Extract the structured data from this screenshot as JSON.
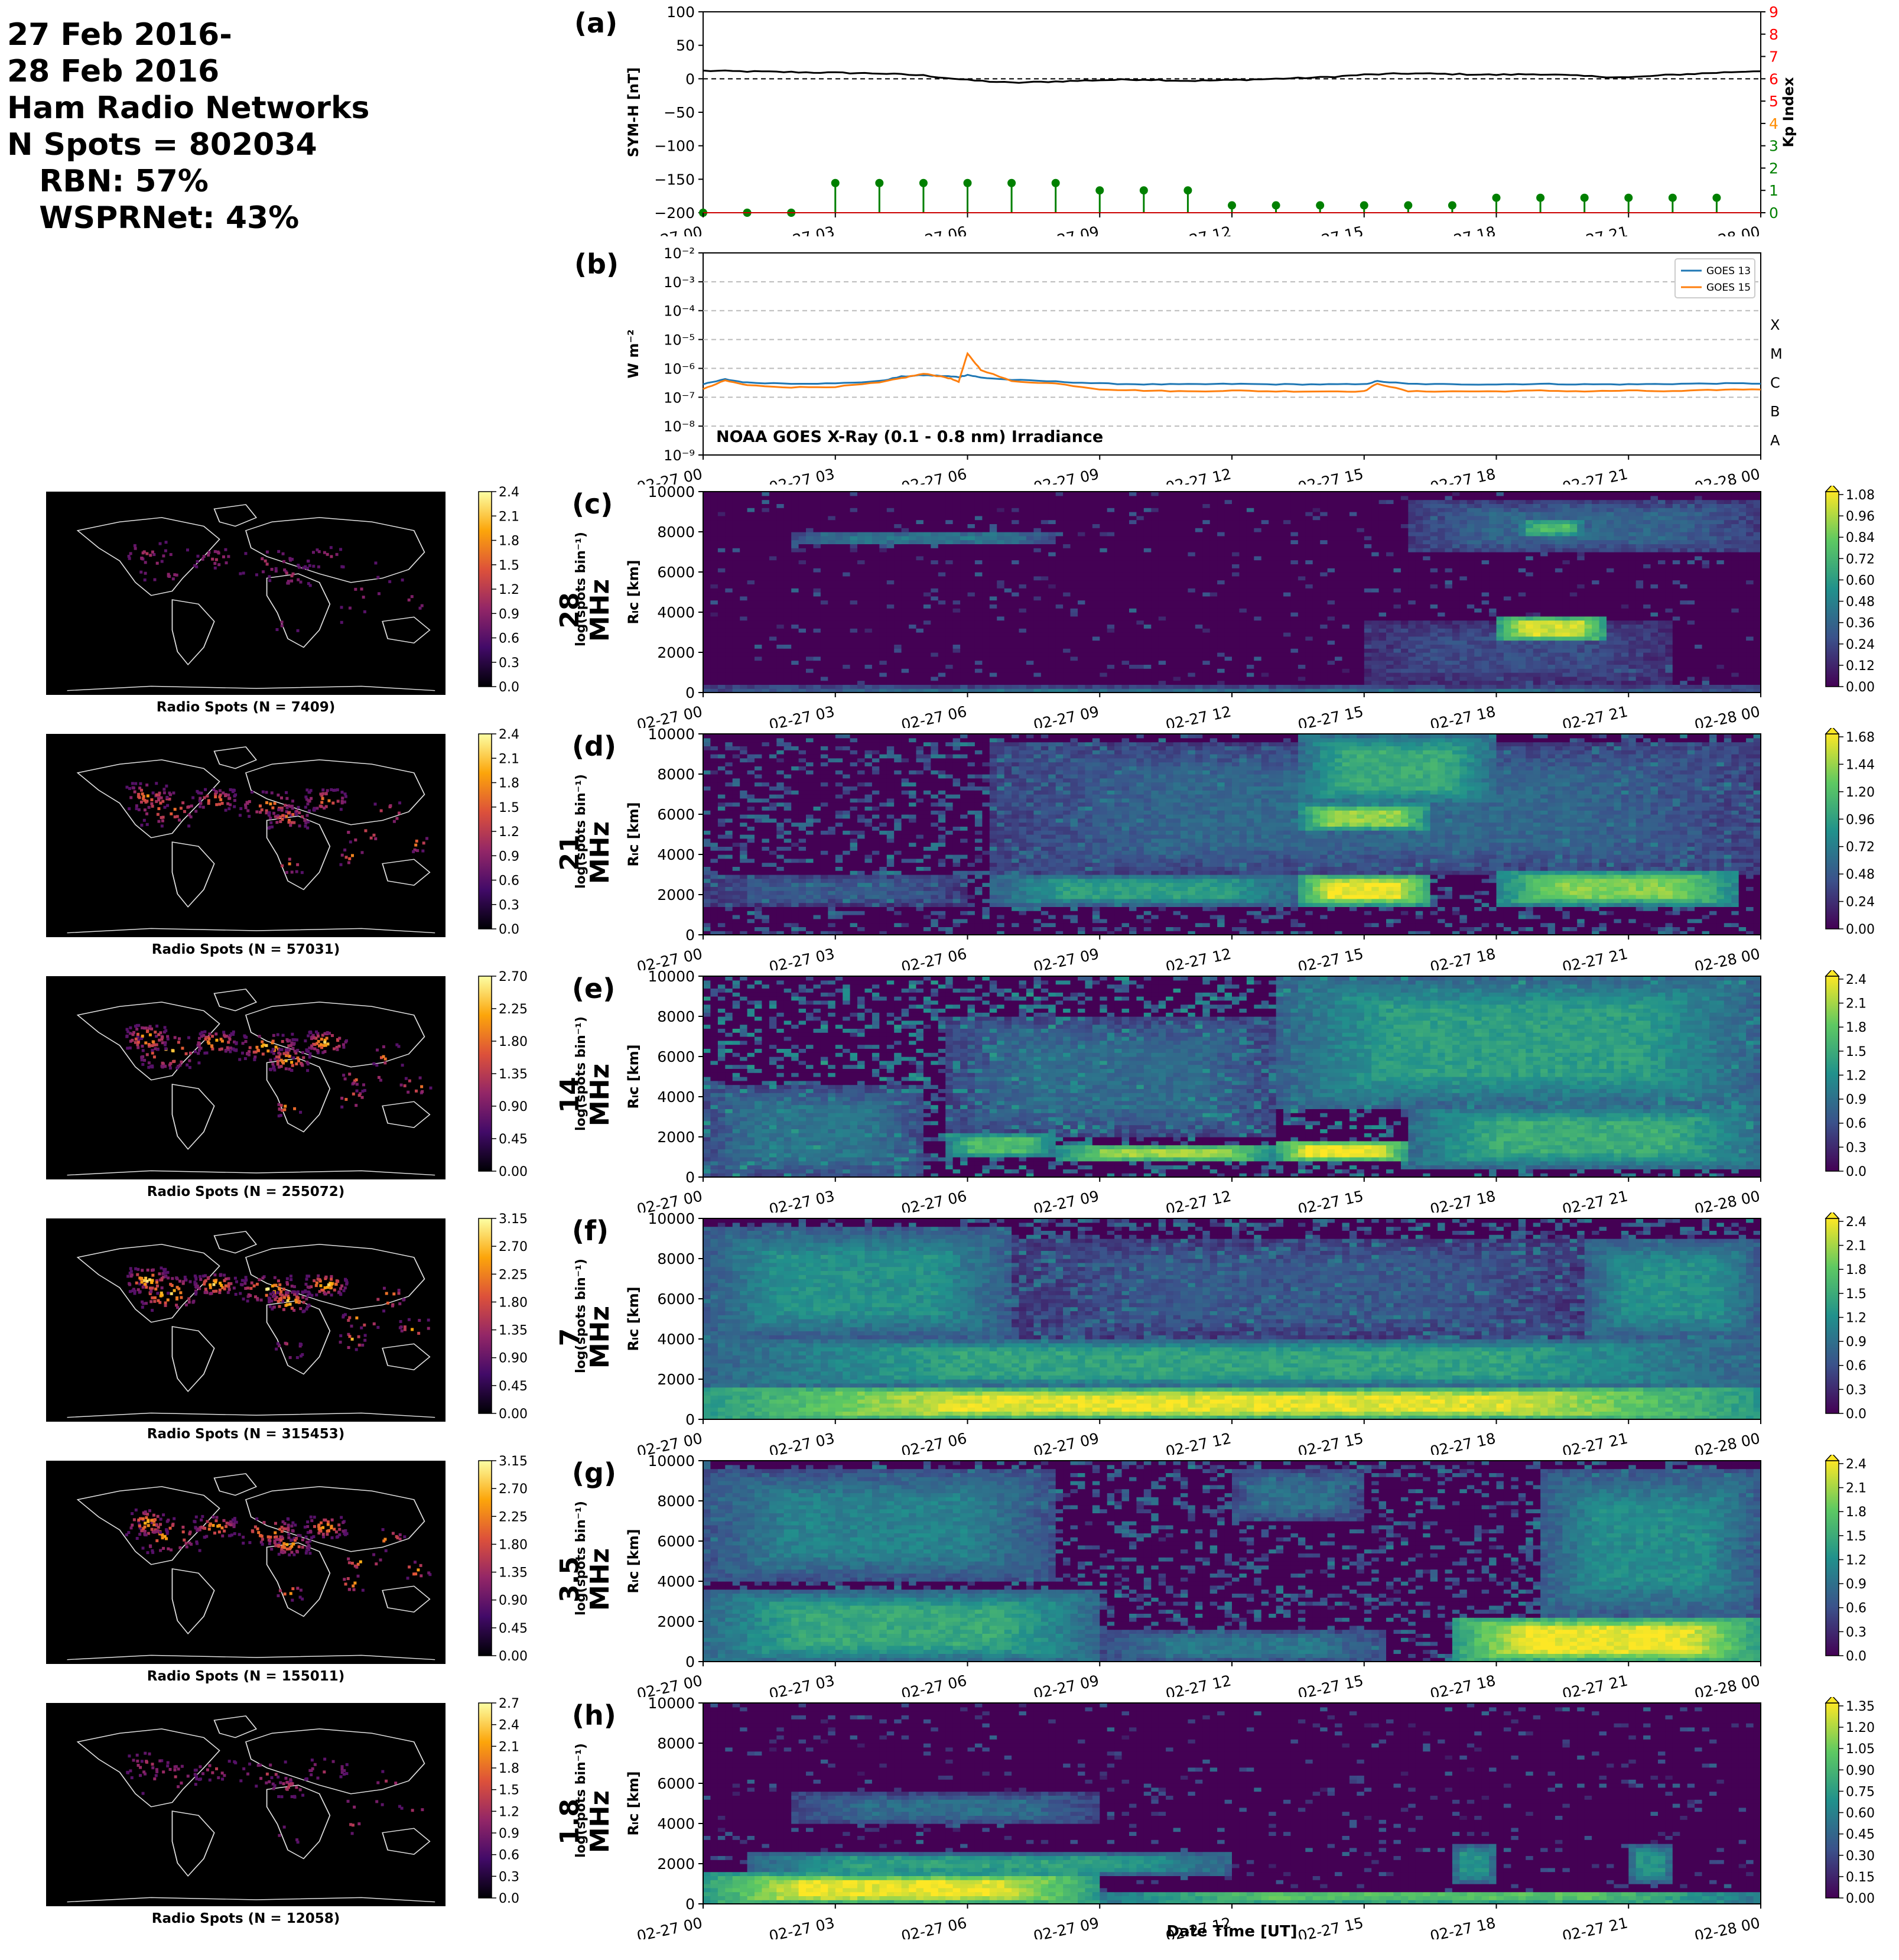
{
  "header": {
    "lines": [
      "27 Feb 2016-",
      "28 Feb 2016",
      "Ham Radio Networks",
      "N Spots = 802034",
      "   RBN: 57%",
      "   WSPRNet: 43%"
    ]
  },
  "time_axis": {
    "ticks": [
      "02-27 00",
      "02-27 03",
      "02-27 06",
      "02-27 09",
      "02-27 12",
      "02-27 15",
      "02-27 18",
      "02-27 21",
      "02-28 00"
    ],
    "xlabel": "Date Time [UT]"
  },
  "colors": {
    "symh_line": "#000000",
    "kp_stem": "#008000",
    "kp_axis_red": "#ff0000",
    "kp_axis_orange": "#ff8c00",
    "kp_axis_green": "#008000",
    "goes13": "#1f77b4",
    "goes15": "#ff7f0e",
    "viridis": [
      "#440154",
      "#3b528b",
      "#21918c",
      "#5ec962",
      "#fde725"
    ],
    "inferno": [
      "#000004",
      "#420a68",
      "#932667",
      "#dd513a",
      "#fca50a",
      "#fcffa4"
    ]
  },
  "chart_data": [
    {
      "panel": "(a)",
      "type": "line",
      "ylabel": "SYM-H [nT]",
      "ylabel_right": "Kp Index",
      "ylim": [
        -200,
        100
      ],
      "yticks": [
        "100",
        "50",
        "0",
        "−50",
        "−100",
        "−150",
        "−200"
      ],
      "ylim_right": [
        0,
        9
      ],
      "yticks_right": [
        "9",
        "8",
        "7",
        "6",
        "5",
        "4",
        "3",
        "2",
        "1",
        "0"
      ],
      "x_hours": [
        0,
        1,
        2,
        3,
        4,
        5,
        6,
        7,
        8,
        9,
        10,
        11,
        12,
        13,
        14,
        15,
        16,
        17,
        18,
        19,
        20,
        21,
        22,
        23,
        24
      ],
      "series": [
        {
          "values": [
            12,
            11,
            10,
            9,
            8,
            5,
            -2,
            -6,
            -4,
            -2,
            -1,
            -3,
            -2,
            0,
            2,
            6,
            8,
            7,
            6,
            7,
            4,
            2,
            6,
            9,
            12
          ]
        }
      ],
      "kp": {
        "x_hours": [
          0,
          1,
          2,
          3,
          4,
          5,
          6,
          7,
          8,
          9,
          10,
          11,
          12,
          13,
          14,
          15,
          16,
          17,
          18,
          19,
          20,
          21,
          22,
          23
        ],
        "values": [
          0,
          0,
          0,
          1.33,
          1.33,
          1.33,
          1.33,
          1.33,
          1.33,
          1.0,
          1.0,
          1.0,
          0.33,
          0.33,
          0.33,
          0.33,
          0.33,
          0.33,
          0.67,
          0.67,
          0.67,
          0.67,
          0.67,
          0.67
        ]
      }
    },
    {
      "panel": "(b)",
      "type": "line",
      "ylabel": "W m⁻²",
      "yscale": "log",
      "ylim": [
        1e-09,
        0.01
      ],
      "yticks": [
        "10⁻²",
        "10⁻³",
        "10⁻⁴",
        "10⁻⁵",
        "10⁻⁶",
        "10⁻⁷",
        "10⁻⁸",
        "10⁻⁹"
      ],
      "flare_classes": [
        "X",
        "M",
        "C",
        "B",
        "A"
      ],
      "annotation": "NOAA GOES X-Ray (0.1 - 0.8 nm) Irradiance",
      "legend_location": "top-right",
      "x_hours": [
        0,
        0.5,
        1,
        2,
        3,
        4,
        4.5,
        5,
        5.5,
        5.8,
        6,
        6.3,
        7,
        8,
        9,
        10,
        11,
        12,
        13,
        14,
        15,
        15.3,
        16,
        17,
        18,
        19,
        20,
        21,
        22,
        23,
        24
      ],
      "series": [
        {
          "name": "GOES 13",
          "values": [
            2.8e-07,
            4.2e-07,
            3.2e-07,
            3e-07,
            3e-07,
            3.6e-07,
            5.2e-07,
            5.8e-07,
            5.4e-07,
            5e-07,
            6e-07,
            4.8e-07,
            4e-07,
            3.5e-07,
            3e-07,
            2.8e-07,
            2.8e-07,
            2.9e-07,
            2.8e-07,
            2.8e-07,
            2.8e-07,
            3.6e-07,
            2.9e-07,
            2.8e-07,
            2.8e-07,
            2.9e-07,
            2.8e-07,
            2.8e-07,
            2.9e-07,
            3e-07,
            3e-07
          ]
        },
        {
          "name": "GOES 15",
          "values": [
            1.9e-07,
            3.8e-07,
            2.6e-07,
            2.2e-07,
            2.3e-07,
            3.2e-07,
            4.6e-07,
            6.5e-07,
            5e-07,
            3.5e-07,
            3.2e-06,
            9e-07,
            3.6e-07,
            3e-07,
            1.9e-07,
            1.7e-07,
            1.6e-07,
            1.7e-07,
            1.6e-07,
            1.6e-07,
            1.6e-07,
            3e-07,
            1.6e-07,
            1.6e-07,
            1.6e-07,
            1.7e-07,
            1.6e-07,
            1.7e-07,
            1.6e-07,
            1.8e-07,
            1.9e-07
          ]
        }
      ]
    },
    {
      "panel": "(c)",
      "type": "heatmap",
      "band": "28 MHz",
      "ylabel": "Rₗc [km]",
      "ylim": [
        0,
        10000
      ],
      "yticks": [
        "10000",
        "8000",
        "6000",
        "4000",
        "2000",
        "0"
      ],
      "colorbar_label": "log(spots bin⁻¹)",
      "cmax": 1.08,
      "colorbar_ticks": [
        "1.08",
        "0.96",
        "0.84",
        "0.72",
        "0.60",
        "0.48",
        "0.36",
        "0.24",
        "0.12",
        "0.00"
      ],
      "map_title": "Radio Spots (N = 7409)",
      "map_colorbar_ticks": [
        "2.4",
        "2.1",
        "1.8",
        "1.5",
        "1.2",
        "0.9",
        "0.6",
        "0.3",
        "0.0"
      ],
      "blobs": [
        {
          "t0": 18,
          "t1": 20.5,
          "r0": 2600,
          "r1": 3800,
          "v": 1.0
        },
        {
          "t0": 18.5,
          "t1": 20,
          "r0": 7800,
          "r1": 8600,
          "v": 0.75
        },
        {
          "t0": 16,
          "t1": 24,
          "r0": 7000,
          "r1": 9500,
          "v": 0.35
        },
        {
          "t0": 2,
          "t1": 8,
          "r0": 7400,
          "r1": 8000,
          "v": 0.45
        },
        {
          "t0": 0,
          "t1": 24,
          "r0": 0,
          "r1": 300,
          "v": 0.4
        },
        {
          "t0": 15,
          "t1": 22,
          "r0": 500,
          "r1": 3500,
          "v": 0.25
        }
      ],
      "noise": 0.3,
      "noise_density": 0.05
    },
    {
      "panel": "(d)",
      "type": "heatmap",
      "band": "21 MHz",
      "ylabel": "Rₗc [km]",
      "ylim": [
        0,
        10000
      ],
      "yticks": [
        "10000",
        "8000",
        "6000",
        "4000",
        "2000",
        "0"
      ],
      "colorbar_label": "log(spots bin⁻¹)",
      "cmax": 1.8,
      "colorbar_ticks": [
        "1.68",
        "1.44",
        "1.20",
        "0.96",
        "0.72",
        "0.48",
        "0.24",
        "0.00"
      ],
      "map_title": "Radio Spots (N = 57031)",
      "map_colorbar_ticks": [
        "2.4",
        "2.1",
        "1.8",
        "1.5",
        "1.2",
        "0.9",
        "0.6",
        "0.3",
        "0.0"
      ],
      "blobs": [
        {
          "t0": 13.5,
          "t1": 16.5,
          "r0": 1500,
          "r1": 3000,
          "v": 1.75
        },
        {
          "t0": 13.5,
          "t1": 16.5,
          "r0": 5200,
          "r1": 6500,
          "v": 1.5
        },
        {
          "t0": 18,
          "t1": 23.5,
          "r0": 1500,
          "r1": 3200,
          "v": 1.45
        },
        {
          "t0": 6.5,
          "t1": 13.5,
          "r0": 1500,
          "r1": 3000,
          "v": 1.0
        },
        {
          "t0": 6.5,
          "t1": 24,
          "r0": 3000,
          "r1": 9500,
          "v": 0.6
        },
        {
          "t0": 13.5,
          "t1": 18,
          "r0": 6500,
          "r1": 10000,
          "v": 1.1
        },
        {
          "t0": 0,
          "t1": 6,
          "r0": 1500,
          "r1": 3000,
          "v": 0.5
        }
      ],
      "noise": 0.4,
      "noise_density": 0.25
    },
    {
      "panel": "(e)",
      "type": "heatmap",
      "band": "14 MHz",
      "ylabel": "Rₗc [km]",
      "ylim": [
        0,
        10000
      ],
      "yticks": [
        "10000",
        "8000",
        "6000",
        "4000",
        "2000",
        "0"
      ],
      "colorbar_label": "log(spots bin⁻¹)",
      "cmax": 2.6,
      "colorbar_ticks": [
        "2.4",
        "2.1",
        "1.8",
        "1.5",
        "1.2",
        "0.9",
        "0.6",
        "0.3",
        "0.0"
      ],
      "map_title": "Radio Spots (N = 255072)",
      "map_colorbar_ticks": [
        "2.70",
        "2.25",
        "1.80",
        "1.35",
        "0.90",
        "0.45",
        "0.00"
      ],
      "blobs": [
        {
          "t0": 13,
          "t1": 16,
          "r0": 800,
          "r1": 1800,
          "v": 2.55
        },
        {
          "t0": 8,
          "t1": 13,
          "r0": 800,
          "r1": 1600,
          "v": 2.2
        },
        {
          "t0": 5.5,
          "t1": 8,
          "r0": 1000,
          "r1": 2200,
          "v": 1.8
        },
        {
          "t0": 16,
          "t1": 24,
          "r0": 500,
          "r1": 3500,
          "v": 1.6
        },
        {
          "t0": 13,
          "t1": 24,
          "r0": 3500,
          "r1": 10000,
          "v": 1.45
        },
        {
          "t0": 0,
          "t1": 5,
          "r0": 0,
          "r1": 4500,
          "v": 1.0
        },
        {
          "t0": 5.5,
          "t1": 13,
          "r0": 2000,
          "r1": 8000,
          "v": 0.9
        }
      ],
      "noise": 0.5,
      "noise_density": 0.3
    },
    {
      "panel": "(f)",
      "type": "heatmap",
      "band": "7 MHz",
      "ylabel": "Rₗc [km]",
      "ylim": [
        0,
        10000
      ],
      "yticks": [
        "10000",
        "8000",
        "6000",
        "4000",
        "2000",
        "0"
      ],
      "colorbar_label": "log(spots bin⁻¹)",
      "cmax": 2.6,
      "colorbar_ticks": [
        "2.4",
        "2.1",
        "1.8",
        "1.5",
        "1.2",
        "0.9",
        "0.6",
        "0.3",
        "0.0"
      ],
      "map_title": "Radio Spots (N = 315453)",
      "map_colorbar_ticks": [
        "3.15",
        "2.70",
        "2.25",
        "1.80",
        "1.35",
        "0.90",
        "0.45",
        "0.00"
      ],
      "blobs": [
        {
          "t0": 0,
          "t1": 24,
          "r0": 0,
          "r1": 1600,
          "v": 2.5
        },
        {
          "t0": 0,
          "t1": 24,
          "r0": 1600,
          "r1": 4000,
          "v": 1.5
        },
        {
          "t0": 0,
          "t1": 7,
          "r0": 4000,
          "r1": 9500,
          "v": 1.3
        },
        {
          "t0": 20,
          "t1": 24,
          "r0": 4000,
          "r1": 9000,
          "v": 1.3
        },
        {
          "t0": 7,
          "t1": 20,
          "r0": 4000,
          "r1": 9000,
          "v": 0.7
        }
      ],
      "noise": 0.4,
      "noise_density": 0.35
    },
    {
      "panel": "(g)",
      "type": "heatmap",
      "band": "3.5 MHz",
      "ylabel": "Rₗc [km]",
      "ylim": [
        0,
        10000
      ],
      "yticks": [
        "10000",
        "8000",
        "6000",
        "4000",
        "2000",
        "0"
      ],
      "colorbar_label": "log(spots bin⁻¹)",
      "cmax": 2.5,
      "colorbar_ticks": [
        "2.4",
        "2.1",
        "1.8",
        "1.5",
        "1.2",
        "0.9",
        "0.6",
        "0.3",
        "0.0"
      ],
      "map_title": "Radio Spots (N = 155011)",
      "map_colorbar_ticks": [
        "3.15",
        "2.70",
        "2.25",
        "1.80",
        "1.35",
        "0.90",
        "0.45",
        "0.00"
      ],
      "blobs": [
        {
          "t0": 17,
          "t1": 24,
          "r0": 0,
          "r1": 2200,
          "v": 2.45
        },
        {
          "t0": 0,
          "t1": 9,
          "r0": 0,
          "r1": 3500,
          "v": 1.5
        },
        {
          "t0": 0,
          "t1": 8,
          "r0": 4000,
          "r1": 9500,
          "v": 1.1
        },
        {
          "t0": 9,
          "t1": 15.5,
          "r0": 0,
          "r1": 1500,
          "v": 1.0
        },
        {
          "t0": 12,
          "t1": 15,
          "r0": 7000,
          "r1": 9500,
          "v": 0.9
        },
        {
          "t0": 19,
          "t1": 24,
          "r0": 2200,
          "r1": 9500,
          "v": 1.2
        }
      ],
      "noise": 0.4,
      "noise_density": 0.25
    },
    {
      "panel": "(h)",
      "type": "heatmap",
      "band": "1.8 MHz",
      "ylabel": "Rₗc [km]",
      "ylim": [
        0,
        10000
      ],
      "yticks": [
        "10000",
        "8000",
        "6000",
        "4000",
        "2000",
        "0"
      ],
      "colorbar_label": "log(spots bin⁻¹)",
      "cmax": 1.4,
      "colorbar_ticks": [
        "1.35",
        "1.20",
        "1.05",
        "0.90",
        "0.75",
        "0.60",
        "0.45",
        "0.30",
        "0.15",
        "0.00"
      ],
      "map_title": "Radio Spots (N = 12058)",
      "map_colorbar_ticks": [
        "2.7",
        "2.4",
        "2.1",
        "1.8",
        "1.5",
        "1.2",
        "0.9",
        "0.6",
        "0.3",
        "0.0"
      ],
      "blobs": [
        {
          "t0": 0,
          "t1": 9,
          "r0": 0,
          "r1": 1500,
          "v": 1.35
        },
        {
          "t0": 9,
          "t1": 24,
          "r0": 0,
          "r1": 700,
          "v": 1.0
        },
        {
          "t0": 1,
          "t1": 12,
          "r0": 1500,
          "r1": 2500,
          "v": 0.8
        },
        {
          "t0": 2,
          "t1": 9,
          "r0": 4000,
          "r1": 5500,
          "v": 0.5
        },
        {
          "t0": 17,
          "t1": 18,
          "r0": 1000,
          "r1": 3000,
          "v": 0.7
        },
        {
          "t0": 21,
          "t1": 22,
          "r0": 1000,
          "r1": 3000,
          "v": 0.7
        }
      ],
      "noise": 0.3,
      "noise_density": 0.07
    }
  ]
}
